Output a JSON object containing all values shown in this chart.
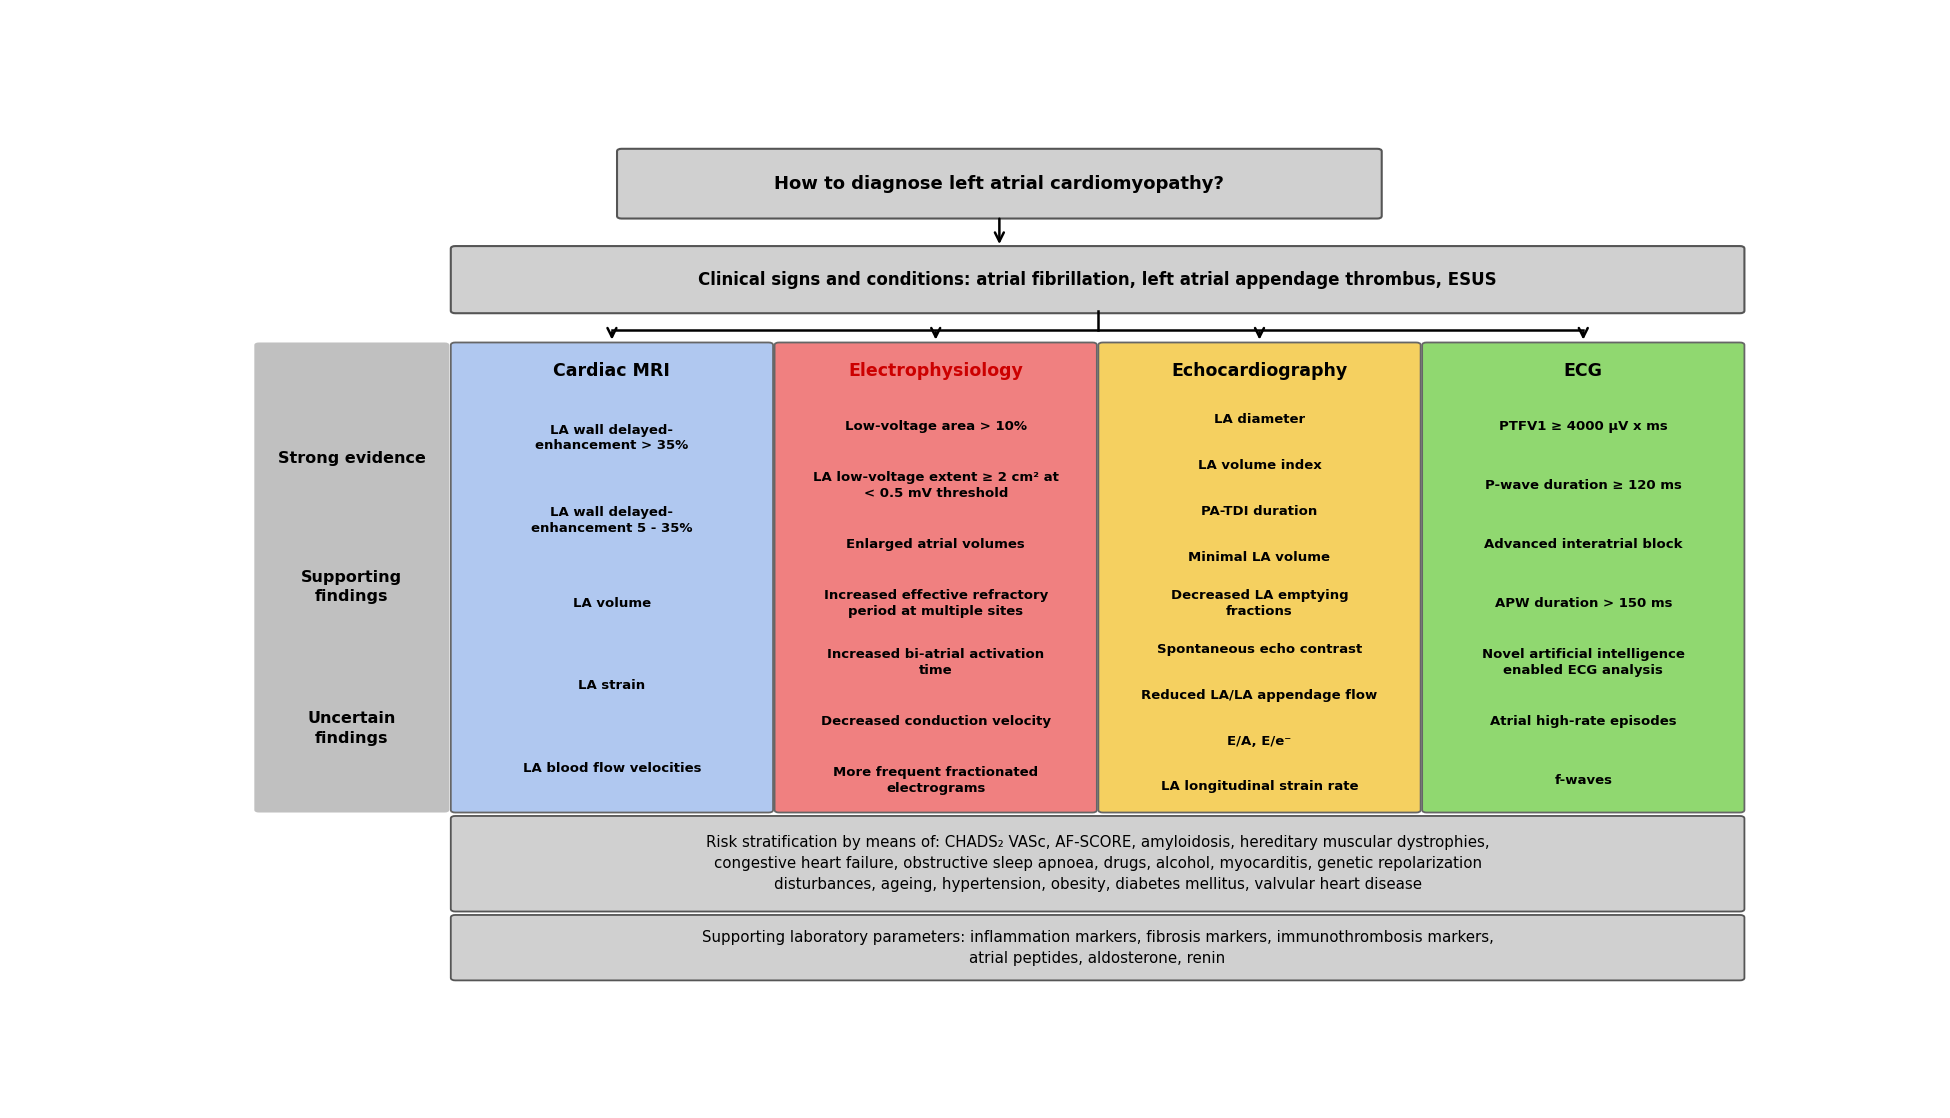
{
  "title_box": "How to diagnose left atrial cardiomyopathy?",
  "clinical_box": "Clinical signs and conditions: atrial fibrillation, left atrial appendage thrombus, ESUS",
  "left_label_bg": "#c0c0c0",
  "columns": [
    {
      "title": "Cardiac MRI",
      "title_color": "#000000",
      "bg_color": "#b0c8f0",
      "items": [
        "LA wall delayed-\nenhancement > 35%",
        "LA wall delayed-\nenhancement 5 - 35%",
        "LA volume",
        "LA strain",
        "LA blood flow velocities"
      ]
    },
    {
      "title": "Electrophysiology",
      "title_color": "#cc0000",
      "bg_color": "#f08080",
      "items": [
        "Low-voltage area > 10%",
        "LA low-voltage extent ≥ 2 cm² at\n< 0.5 mV threshold",
        "Enlarged atrial volumes",
        "Increased effective refractory\nperiod at multiple sites",
        "Increased bi-atrial activation\ntime",
        "Decreased conduction velocity",
        "More frequent fractionated\nelectrograms"
      ]
    },
    {
      "title": "Echocardiography",
      "title_color": "#000000",
      "bg_color": "#f5d060",
      "items": [
        "LA diameter",
        "LA volume index",
        "PA-TDI duration",
        "Minimal LA volume",
        "Decreased LA emptying\nfractions",
        "Spontaneous echo contrast",
        "Reduced LA/LA appendage flow",
        "E/A, E/e⁻",
        "LA longitudinal strain rate"
      ]
    },
    {
      "title": "ECG",
      "title_color": "#000000",
      "bg_color": "#90d870",
      "items": [
        "PTFV1 ≥ 4000 μV x ms",
        "P-wave duration ≥ 120 ms",
        "Advanced interatrial block",
        "APW duration > 150 ms",
        "Novel artificial intelligence\nenabled ECG analysis",
        "Atrial high-rate episodes",
        "f-waves"
      ]
    }
  ],
  "bottom_box1": "Risk stratification by means of: CHADS₂ VASc, AF-SCORE, amyloidosis, hereditary muscular dystrophies,\ncongestive heart failure, obstructive sleep apnoea, drugs, alcohol, myocarditis, genetic repolarization\ndisturbances, ageing, hypertension, obesity, diabetes mellitus, valvular heart disease",
  "bottom_box2": "Supporting laboratory parameters: inflammation markers, fibrosis markers, immunothrombosis markers,\natrial peptides, aldosterone, renin",
  "title_box_bg": "#d0d0d0",
  "clinical_box_bg": "#d0d0d0",
  "bottom_box_bg": "#d0d0d0",
  "figsize": [
    19.5,
    11.18
  ],
  "dpi": 100
}
